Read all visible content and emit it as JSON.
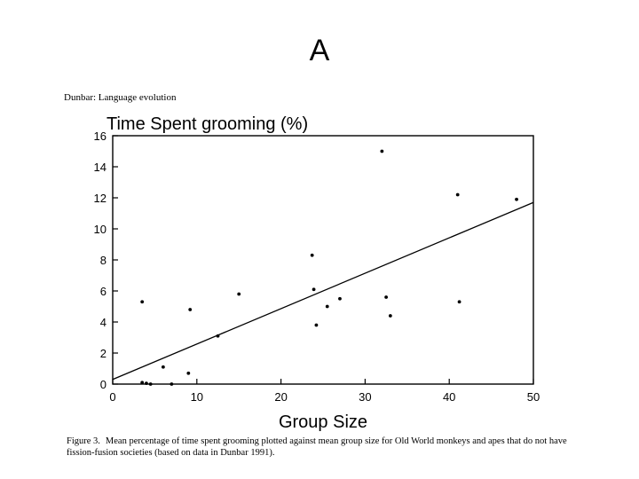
{
  "slide": {
    "title": "A"
  },
  "running_head": "Dunbar: Language evolution",
  "caption": {
    "label": "Figure 3.",
    "text": "Mean percentage of time spent grooming plotted against mean group size for Old World monkeys and apes that do not have fission-fusion societies (based on data in Dunbar 1991)."
  },
  "chart_data": {
    "type": "scatter",
    "title": "Time Spent grooming (%)",
    "xlabel": "Group Size",
    "ylabel": "Time Spent grooming (%)",
    "xlim": [
      0,
      50
    ],
    "ylim": [
      0,
      16
    ],
    "xticks": [
      0,
      10,
      20,
      30,
      40,
      50
    ],
    "yticks": [
      0,
      2,
      4,
      6,
      8,
      10,
      12,
      14,
      16
    ],
    "grid": false,
    "points": [
      {
        "x": 3.5,
        "y": 5.3
      },
      {
        "x": 3.5,
        "y": 0.1
      },
      {
        "x": 4.0,
        "y": 0.05
      },
      {
        "x": 4.5,
        "y": 0.0
      },
      {
        "x": 6.0,
        "y": 1.1
      },
      {
        "x": 7.0,
        "y": 0.0
      },
      {
        "x": 9.0,
        "y": 0.7
      },
      {
        "x": 9.2,
        "y": 4.8
      },
      {
        "x": 12.5,
        "y": 3.1
      },
      {
        "x": 15.0,
        "y": 5.8
      },
      {
        "x": 23.7,
        "y": 8.3
      },
      {
        "x": 23.9,
        "y": 6.1
      },
      {
        "x": 24.2,
        "y": 3.8
      },
      {
        "x": 25.5,
        "y": 5.0
      },
      {
        "x": 27.0,
        "y": 5.5
      },
      {
        "x": 32.0,
        "y": 15.0
      },
      {
        "x": 32.5,
        "y": 5.6
      },
      {
        "x": 33.0,
        "y": 4.4
      },
      {
        "x": 41.0,
        "y": 12.2
      },
      {
        "x": 41.2,
        "y": 5.3
      },
      {
        "x": 48.0,
        "y": 11.9
      }
    ],
    "regression_line": {
      "x": [
        0,
        50
      ],
      "y": [
        0.3,
        11.7
      ]
    }
  }
}
